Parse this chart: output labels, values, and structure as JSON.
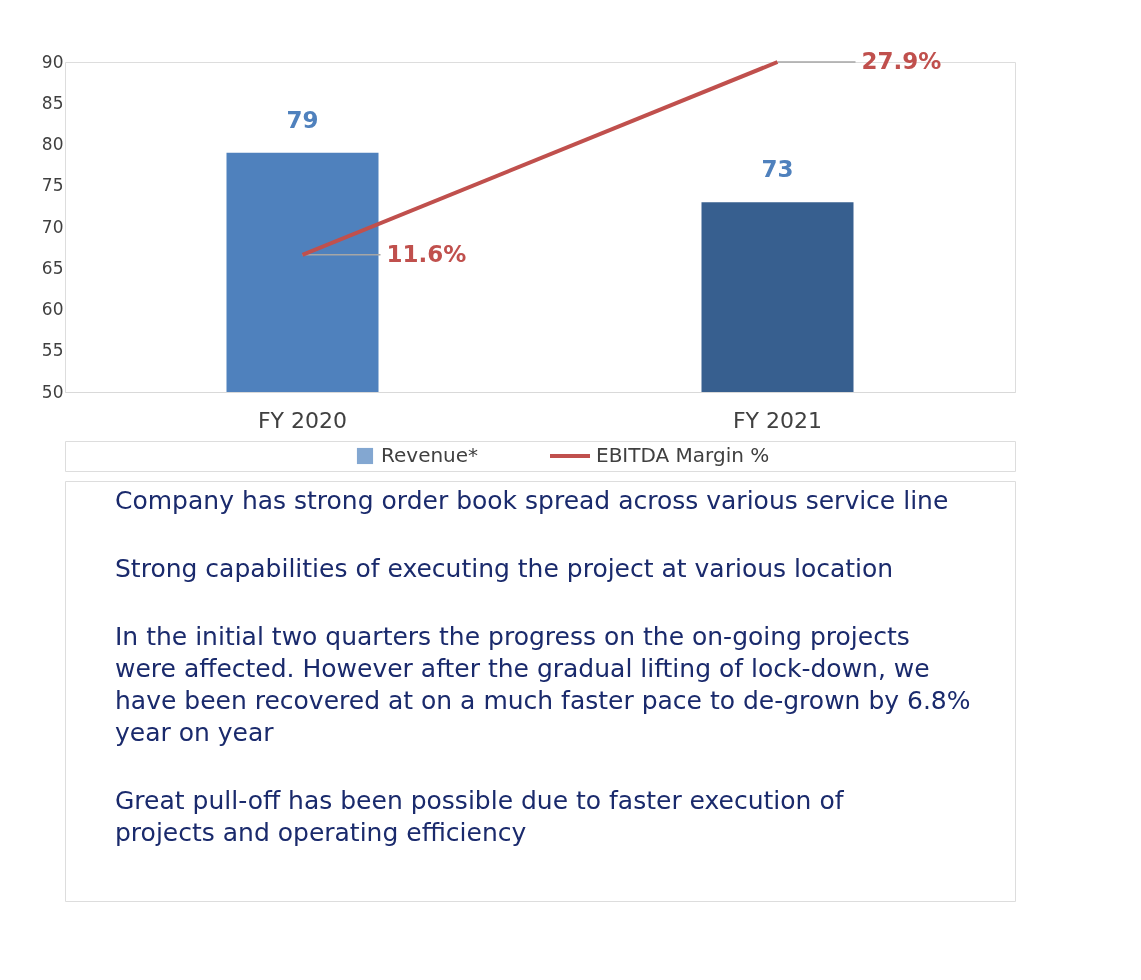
{
  "chart_data": {
    "type": "bar",
    "categories": [
      "FY 2020",
      "FY 2021"
    ],
    "series": [
      {
        "name": "Revenue*",
        "colors": [
          "#4f81bd",
          "#375f8f"
        ],
        "color": "#4f81bd",
        "values": [
          79,
          73
        ],
        "value_labels": [
          "79",
          "73"
        ]
      },
      {
        "name": "EBITDA Margin %",
        "type": "line",
        "axis": "y2",
        "color": "#c0504d",
        "values": [
          11.6,
          27.9
        ],
        "value_labels": [
          "11.6%",
          "27.9%"
        ]
      }
    ],
    "ylim": [
      50,
      90
    ],
    "yticks": [
      50,
      55,
      60,
      65,
      70,
      75,
      80,
      85,
      90
    ],
    "tick_labels": [
      "x",
      "y"
    ],
    "grid": false,
    "legend": "bottom",
    "marker": "none",
    "line_style": "solid",
    "annotations": [
      "Company has strong order book spread across various service line",
      "Strong capabilities of executing the project at various location",
      "In the initial two quarters the progress on the on-going projects were affected. However after the gradual lifting of lock-down, we have been recovered at on a much faster pace to de-grown by 6.8% year on year",
      "Great pull-off has been possible due to faster execution of projects and operating efficiency"
    ]
  }
}
